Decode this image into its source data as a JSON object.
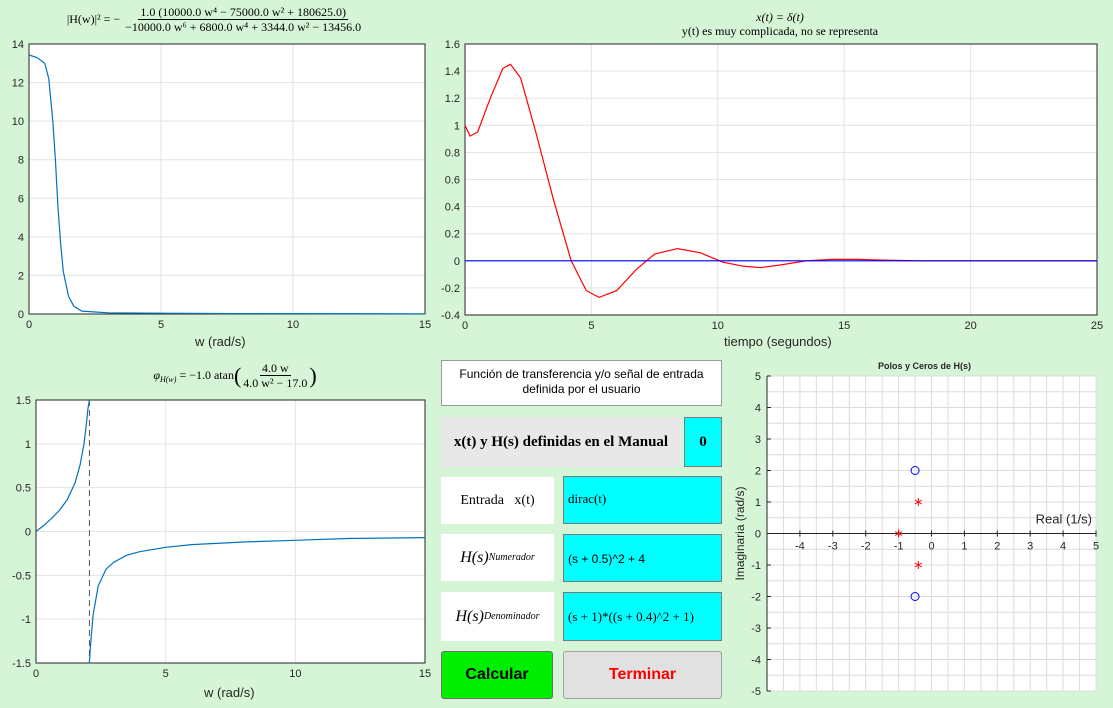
{
  "plot_magnitude": {
    "formula": {
      "lhs": "|H(w)|² = −",
      "numerator": "1.0 (10000.0 w⁴ − 75000.0 w² + 180625.0)",
      "denominator": "−10000.0 w⁶ + 6800.0 w⁴ + 3344.0 w² − 13456.0"
    },
    "xlabel": "w (rad/s)",
    "chart_data": {
      "type": "line",
      "xlim": [
        0,
        15
      ],
      "ylim": [
        0,
        14
      ],
      "xticks": [
        "0",
        "5",
        "10",
        "15"
      ],
      "yticks": [
        "0",
        "2",
        "4",
        "6",
        "8",
        "10",
        "12",
        "14"
      ],
      "grid": true,
      "series": [
        {
          "color": "#0072bd",
          "x": [
            0,
            0.3,
            0.6,
            0.75,
            0.9,
            1.0,
            1.1,
            1.2,
            1.3,
            1.5,
            1.7,
            2.0,
            3,
            5,
            8,
            15
          ],
          "y": [
            13.43,
            13.3,
            13.0,
            12.2,
            10.0,
            8.0,
            5.5,
            3.6,
            2.2,
            0.9,
            0.4,
            0.15,
            0.06,
            0.04,
            0.02,
            0.01
          ]
        }
      ]
    }
  },
  "plot_time": {
    "title_line1": "x(t) = δ(t)",
    "title_line2": "y(t) es muy complicada, no se representa",
    "xlabel": "tiempo  (segundos)",
    "chart_data": {
      "type": "line",
      "xlim": [
        0,
        25
      ],
      "ylim": [
        -0.4,
        1.6
      ],
      "xticks": [
        "0",
        "5",
        "10",
        "15",
        "20",
        "25"
      ],
      "yticks": [
        "-0.4",
        "-0.2",
        "0",
        "0.2",
        "0.4",
        "0.6",
        "0.8",
        "1",
        "1.2",
        "1.4",
        "1.6"
      ],
      "grid": true,
      "series": [
        {
          "color": "#ff0000",
          "x": [
            0,
            0.2,
            0.5,
            1.0,
            1.5,
            1.8,
            2.2,
            2.8,
            3.5,
            4.2,
            4.8,
            5.3,
            6.0,
            6.8,
            7.5,
            8.4,
            9.3,
            10.2,
            11.0,
            11.7,
            12.5,
            13.5,
            14.5,
            15.5,
            16.5,
            18,
            20,
            25
          ],
          "y": [
            1.0,
            0.92,
            0.95,
            1.2,
            1.42,
            1.45,
            1.35,
            0.95,
            0.45,
            0.0,
            -0.22,
            -0.27,
            -0.22,
            -0.06,
            0.05,
            0.09,
            0.06,
            -0.01,
            -0.04,
            -0.05,
            -0.03,
            0.0,
            0.01,
            0.01,
            0.005,
            0.0,
            0.0,
            0.0
          ]
        },
        {
          "color": "#0000ff",
          "x": [
            0,
            25
          ],
          "y": [
            0,
            0
          ]
        }
      ]
    }
  },
  "plot_phase": {
    "formula": {
      "lhs": "φ",
      "lhs_sub": "H(w)",
      "mid": " = −1.0 atan",
      "numerator": "4.0 w",
      "denominator": "4.0 w² − 17.0"
    },
    "xlabel": "w (rad/s)",
    "chart_data": {
      "type": "line",
      "xlim": [
        0,
        15
      ],
      "ylim": [
        -1.5,
        1.5
      ],
      "xticks": [
        "0",
        "5",
        "10",
        "15"
      ],
      "yticks": [
        "-1.5",
        "-1",
        "-0.5",
        "0",
        "0.5",
        "1",
        "1.5"
      ],
      "grid": true,
      "asymptote_x": 2.06,
      "series": [
        {
          "color": "#0072bd",
          "x": [
            0,
            0.3,
            0.6,
            0.9,
            1.2,
            1.5,
            1.7,
            1.85,
            1.95,
            2.0,
            2.06
          ],
          "y": [
            0,
            0.07,
            0.15,
            0.24,
            0.36,
            0.55,
            0.76,
            1.0,
            1.25,
            1.4,
            1.5
          ]
        },
        {
          "color": "#0072bd",
          "x": [
            2.06,
            2.1,
            2.2,
            2.4,
            2.7,
            3.0,
            3.5,
            4.0,
            5.0,
            6.0,
            8.0,
            10.0,
            12.0,
            15.0
          ],
          "y": [
            -1.5,
            -1.3,
            -0.95,
            -0.62,
            -0.43,
            -0.35,
            -0.27,
            -0.23,
            -0.18,
            -0.15,
            -0.12,
            -0.1,
            -0.08,
            -0.07
          ]
        }
      ]
    }
  },
  "plot_poles": {
    "title": "Polos y Ceros de H(s)",
    "xlabel": "Real (1/s)",
    "ylabel": "Imaginaria (rad/s)",
    "chart_data": {
      "type": "scatter",
      "xlim": [
        -5,
        5
      ],
      "ylim": [
        -5,
        5
      ],
      "xticks": [
        "-4",
        "-3",
        "-2",
        "-1",
        "0",
        "1",
        "2",
        "3",
        "4",
        "5"
      ],
      "yticks": [
        "-5",
        "-4",
        "-3",
        "-2",
        "-1",
        "0",
        "1",
        "2",
        "3",
        "4",
        "5"
      ],
      "grid": true,
      "zeros": {
        "color": "#0000ff",
        "points": [
          [
            -0.5,
            2
          ],
          [
            -0.5,
            -2
          ]
        ]
      },
      "poles": {
        "color": "#ff0000",
        "points": [
          [
            -1,
            0
          ],
          [
            -0.4,
            1
          ],
          [
            -0.4,
            -1
          ]
        ]
      }
    }
  },
  "controls": {
    "tf_title": "Función de transferencia y/o señal de entrada definida por el usuario",
    "manual_label": "x(t) y H(s) definidas en el Manual",
    "manual_value": "0",
    "input_label": "Entrada   x(t)",
    "input_value": "dirac(t)",
    "num_label_main": "H(s)",
    "num_label_sup": "Numerador",
    "num_value": "(s + 0.5)^2 + 4",
    "den_label_main": "H(s)",
    "den_label_sub": "Denominador",
    "den_value": "(s + 1)*((s + 0.4)^2 + 1)",
    "calc_button": "Calcular",
    "end_button": "Terminar",
    "calc_color": "#00ee00",
    "end_color": "#ff0000"
  }
}
